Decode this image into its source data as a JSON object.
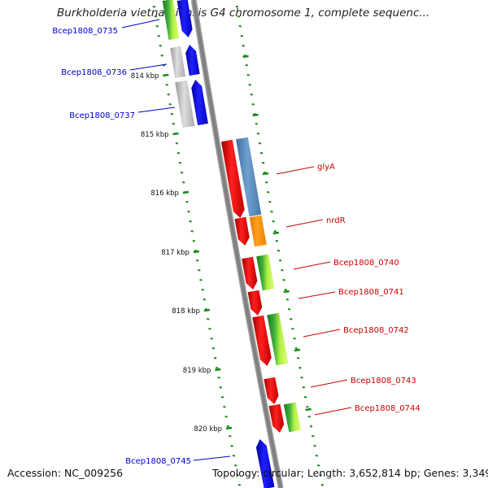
{
  "title": "Burkholderia vietnamiensis G4 chromosome 1, complete sequenc...",
  "footer": {
    "accession": "Accession: NC_009256",
    "topology": "Topology: circular; Length: 3,652,814 bp; Genes: 3,349"
  },
  "colors": {
    "backbone": "#808080",
    "tick": "#1a8a1a",
    "label_blue": "#0000cc",
    "label_red": "#cc0000",
    "forward_gene": "#0000ff",
    "reverse_gene": "#ff0000",
    "pseudo_gray": "#bbbbbb"
  },
  "kbp_ticks": [
    "814 kbp",
    "815 kbp",
    "816 kbp",
    "817 kbp",
    "818 kbp",
    "819 kbp",
    "820 kbp"
  ],
  "gene_labels": [
    {
      "name": "Bcep1808_0735",
      "side": "left"
    },
    {
      "name": "Bcep1808_0736",
      "side": "left"
    },
    {
      "name": "Bcep1808_0737",
      "side": "left"
    },
    {
      "name": "glyA",
      "side": "right"
    },
    {
      "name": "nrdR",
      "side": "right"
    },
    {
      "name": "Bcep1808_0740",
      "side": "right"
    },
    {
      "name": "Bcep1808_0741",
      "side": "right"
    },
    {
      "name": "Bcep1808_0742",
      "side": "right"
    },
    {
      "name": "Bcep1808_0743",
      "side": "right"
    },
    {
      "name": "Bcep1808_0744",
      "side": "right"
    },
    {
      "name": "Bcep1808_0745",
      "side": "left"
    }
  ]
}
